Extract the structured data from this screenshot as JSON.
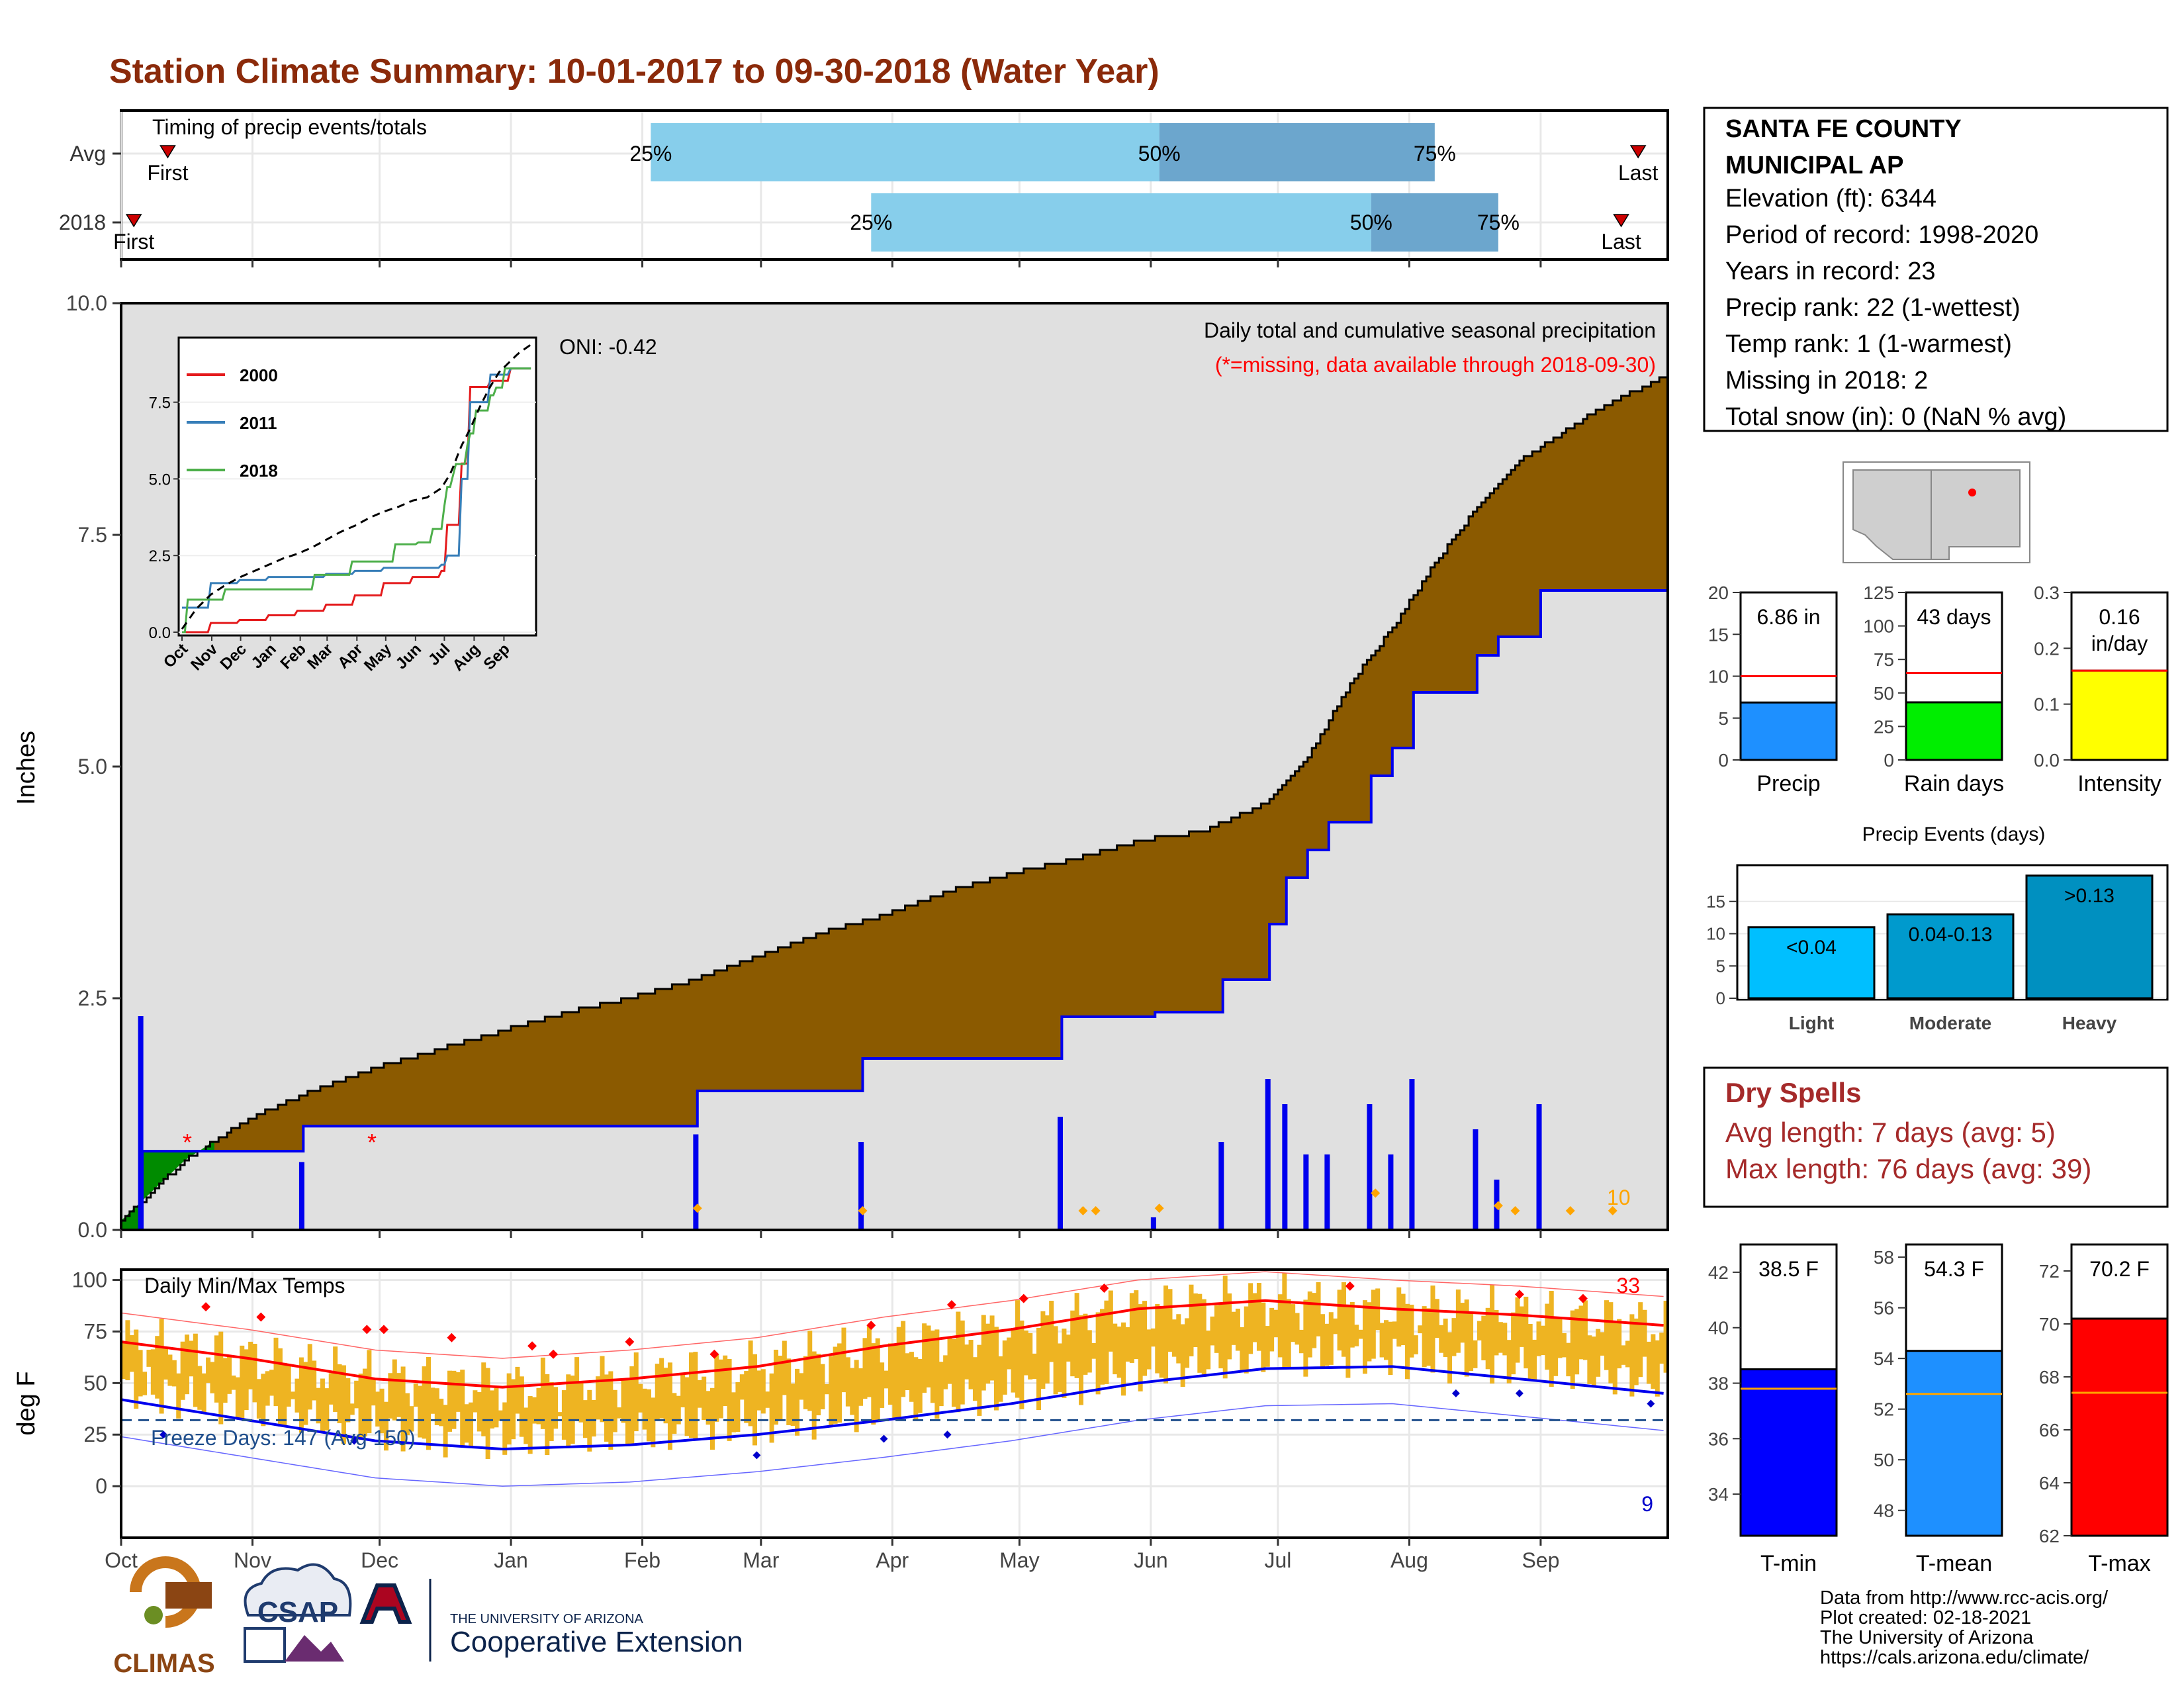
{
  "title": "Station Climate Summary: 10-01-2017 to 09-30-2018 (Water Year)",
  "colors": {
    "title": "#8B2A0A",
    "panel_border": "#000",
    "grid": "#e6e6e6"
  },
  "timing": {
    "label": "Timing of precip events/totals",
    "rows": [
      {
        "name": "Avg",
        "first_label": "First",
        "last_label": "Last",
        "q25_label": "25%",
        "q50_label": "50%",
        "q75_label": "75%"
      },
      {
        "name": "2018",
        "first_label": "First",
        "last_label": "Last",
        "q25_label": "25%",
        "q50_label": "50%",
        "q75_label": "75%"
      }
    ]
  },
  "station": {
    "name_line1": "SANTA FE COUNTY",
    "name_line2": "MUNICIPAL AP",
    "elevation": "Elevation (ft): 6344",
    "period": "Period of record: 1998-2020",
    "years": "Years in record: 23",
    "precip_rank": "Precip rank: 22 (1-wettest)",
    "temp_rank": "Temp rank: 1 (1-warmest)",
    "missing": "Missing in 2018: 2",
    "snow": "Total snow (in): 0 (NaN % avg)"
  },
  "precip_panel": {
    "ylabel": "Inches",
    "oni": "ONI: -0.42",
    "note1": "Daily total and cumulative seasonal precipitation",
    "note2": "(*=missing, data available through 2018-09-30)",
    "count_label": "10",
    "yticks": [
      "0.0",
      "2.5",
      "5.0",
      "7.5",
      "10.0"
    ]
  },
  "inset": {
    "legend": [
      "2000",
      "2011",
      "2018"
    ],
    "legend_colors": [
      "#e41a1c",
      "#377eb8",
      "#4daf4a"
    ],
    "yticks": [
      "0.0",
      "2.5",
      "5.0",
      "7.5"
    ],
    "xticks": [
      "Oct",
      "Nov",
      "Dec",
      "Jan",
      "Feb",
      "Mar",
      "Apr",
      "May",
      "Jun",
      "Jul",
      "Aug",
      "Sep"
    ]
  },
  "months": [
    "Oct",
    "Nov",
    "Dec",
    "Jan",
    "Feb",
    "Mar",
    "Apr",
    "May",
    "Jun",
    "Jul",
    "Aug",
    "Sep"
  ],
  "temp_panel": {
    "label": "Daily Min/Max Temps",
    "ylabel": "deg F",
    "freeze": "Freeze Days: 147 (Avg 150)",
    "hot_count": "33",
    "cold_count": "9",
    "yticks": [
      "0",
      "25",
      "50",
      "75",
      "100"
    ]
  },
  "summary_bars": {
    "precip": {
      "label": "Precip",
      "value_label": "6.86 in",
      "value": 6.86,
      "avg": 10.0,
      "yticks": [
        "0",
        "5",
        "10",
        "15",
        "20"
      ],
      "color": "#1E90FF"
    },
    "rain_days": {
      "label": "Rain days",
      "value_label": "43 days",
      "value": 43,
      "avg": 65,
      "yticks": [
        "0",
        "25",
        "50",
        "75",
        "100",
        "125"
      ],
      "color": "#00EE00"
    },
    "intensity": {
      "label": "Intensity",
      "value_label_1": "0.16",
      "value_label_2": "in/day",
      "value": 0.16,
      "avg": 0.16,
      "yticks": [
        "0.0",
        "0.1",
        "0.2",
        "0.3"
      ],
      "color": "#FFFF00"
    }
  },
  "precip_events": {
    "title": "Precip Events (days)",
    "categories": [
      "Light",
      "Moderate",
      "Heavy"
    ],
    "values": [
      11,
      13,
      19
    ],
    "bar_labels": [
      "<0.04",
      "0.04-0.13",
      ">0.13"
    ],
    "colors": [
      "#00BFFF",
      "#009ACD",
      "#0090C0"
    ],
    "yticks": [
      "0",
      "5",
      "10",
      "15"
    ]
  },
  "dry_spells": {
    "title": "Dry Spells",
    "avg_length": "Avg length: 7 days (avg: 5)",
    "max_length": "Max length: 76 days (avg: 39)"
  },
  "temp_bars": {
    "tmin": {
      "label": "T-min",
      "value_label": "38.5 F",
      "value": 38.5,
      "avg": 37.8,
      "yticks": [
        "34",
        "36",
        "38",
        "40",
        "42"
      ],
      "color": "#0000FF"
    },
    "tmean": {
      "label": "T-mean",
      "value_label": "54.3 F",
      "value": 54.3,
      "avg": 52.6,
      "yticks": [
        "48",
        "50",
        "52",
        "54",
        "56",
        "58"
      ],
      "color": "#1E90FF"
    },
    "tmax": {
      "label": "T-max",
      "value_label": "70.2 F",
      "value": 70.2,
      "avg": 67.4,
      "yticks": [
        "62",
        "64",
        "66",
        "68",
        "70",
        "72"
      ],
      "color": "#FF0000"
    }
  },
  "footer": {
    "line1": "Data from http://www.rcc-acis.org/",
    "line2": "Plot created: 02-18-2021",
    "line3": "The University of Arizona",
    "line4": "https://cals.arizona.edu/climate/",
    "logo_climas": "CLIMAS",
    "logo_csap": "CSAP",
    "logo_ua_small": "THE UNIVERSITY OF ARIZONA",
    "logo_ua_big": "Cooperative Extension"
  },
  "chart_data": {
    "type": "area",
    "title": "Daily total and cumulative seasonal precipitation",
    "ylabel": "Inches",
    "ylim": [
      0,
      10
    ],
    "series": [
      {
        "name": "cumulative avg (x=day of water year)",
        "x": [
          0,
          15,
          30,
          45,
          60,
          75,
          90,
          105,
          120,
          135,
          150,
          165,
          180,
          195,
          210,
          225,
          240,
          255,
          270,
          280,
          290,
          300,
          310,
          320,
          330,
          340,
          350,
          364
        ],
        "values": [
          0.1,
          0.75,
          1.2,
          1.5,
          1.75,
          1.95,
          2.15,
          2.35,
          2.5,
          2.7,
          2.95,
          3.2,
          3.4,
          3.65,
          3.85,
          4.0,
          4.2,
          4.3,
          4.6,
          5.1,
          5.9,
          6.5,
          7.2,
          7.8,
          8.3,
          8.6,
          8.9,
          9.2
        ]
      },
      {
        "name": "cumulative 2018 (x=day of water year)",
        "x": [
          0,
          5,
          20,
          43,
          85,
          135,
          136,
          175,
          222,
          244,
          260,
          271,
          275,
          280,
          285,
          295,
          300,
          305,
          320,
          325,
          335,
          364
        ],
        "values": [
          0,
          0.85,
          0.85,
          1.12,
          1.12,
          1.12,
          1.5,
          1.85,
          2.3,
          2.35,
          2.7,
          3.3,
          3.8,
          4.1,
          4.4,
          4.9,
          5.2,
          5.8,
          6.2,
          6.4,
          6.9,
          6.9
        ]
      }
    ],
    "timing_quantiles": {
      "avg": {
        "first": 11,
        "q25": 125,
        "q50": 245,
        "q75": 310,
        "last": 358
      },
      "y2018": {
        "first": 3,
        "q25": 177,
        "q50": 295,
        "q75": 325,
        "last": 354
      }
    },
    "temps": {
      "ylim": [
        -25,
        105
      ],
      "freeze_line": 32,
      "avg_max": {
        "x": [
          0,
          30,
          60,
          90,
          120,
          150,
          180,
          210,
          240,
          270,
          300,
          330,
          364
        ],
        "values": [
          70,
          62,
          52,
          48,
          52,
          58,
          68,
          76,
          86,
          90,
          86,
          83,
          78
        ]
      },
      "avg_min": {
        "x": [
          0,
          30,
          60,
          90,
          120,
          150,
          180,
          210,
          240,
          270,
          300,
          330,
          364
        ],
        "values": [
          42,
          32,
          22,
          18,
          20,
          25,
          32,
          40,
          50,
          57,
          58,
          52,
          45
        ]
      }
    }
  }
}
